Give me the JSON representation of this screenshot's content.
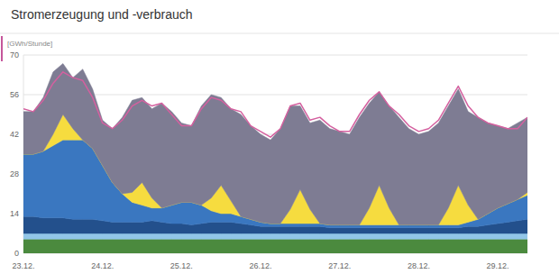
{
  "chart_data": {
    "type": "area",
    "title": "Stromerzeugung und -verbrauch",
    "y_label": "[GWh/Stunde]",
    "stacked": true,
    "grid": true,
    "ylim": [
      0,
      70
    ],
    "yticks": [
      0,
      14,
      28,
      42,
      56,
      70
    ],
    "categories": [
      "23.12.",
      null,
      null,
      null,
      null,
      null,
      null,
      null,
      "24.12.",
      null,
      null,
      null,
      null,
      null,
      null,
      null,
      "25.12.",
      null,
      null,
      null,
      null,
      null,
      null,
      null,
      "26.12.",
      null,
      null,
      null,
      null,
      null,
      null,
      null,
      "27.12.",
      null,
      null,
      null,
      null,
      null,
      null,
      null,
      "28.12.",
      null,
      null,
      null,
      null,
      null,
      null,
      null,
      "29.12.",
      null,
      null,
      null
    ],
    "series": [
      {
        "color": "#4b8a3e",
        "values": [
          5,
          5,
          5,
          5,
          5,
          5,
          5,
          5,
          5,
          5,
          5,
          5,
          5,
          5,
          5,
          5,
          5,
          5,
          5,
          5,
          5,
          5,
          5,
          5,
          5,
          5,
          5,
          5,
          5,
          5,
          5,
          5,
          5,
          5,
          5,
          5,
          5,
          5,
          5,
          5,
          5,
          5,
          5,
          5,
          5,
          5,
          5,
          5,
          5,
          5,
          5,
          5
        ]
      },
      {
        "color": "#92c6e8",
        "values": [
          2,
          2,
          2,
          2,
          2,
          2,
          2,
          2,
          2,
          2,
          2,
          2,
          2,
          2,
          2,
          2,
          2,
          2,
          2,
          2,
          2,
          2,
          2,
          2,
          2,
          2,
          2,
          2,
          2,
          2,
          2,
          2,
          2,
          2,
          2,
          2,
          2,
          2,
          2,
          2,
          2,
          2,
          2,
          2,
          2,
          2,
          2,
          2,
          2,
          2,
          2,
          2
        ]
      },
      {
        "color": "#23508c",
        "values": [
          6,
          6,
          5.5,
          5.5,
          5.5,
          5,
          5,
          5,
          4.5,
          4,
          4,
          4,
          4,
          4.5,
          4,
          3.5,
          3.5,
          3,
          3.5,
          4,
          4,
          4,
          3.5,
          3,
          2.5,
          2.5,
          2.5,
          2.5,
          2.5,
          2.5,
          2.5,
          2,
          2,
          2,
          2,
          2,
          2,
          2,
          2,
          2,
          2,
          2,
          2,
          2,
          2,
          2.5,
          2.5,
          3,
          3.5,
          4,
          4.5,
          5
        ]
      },
      {
        "color": "#3a77c0",
        "values": [
          22,
          22,
          23.5,
          25.5,
          27.5,
          28,
          28,
          25,
          19.5,
          14,
          10,
          7,
          6,
          4.5,
          5,
          6.5,
          7.5,
          8,
          6.5,
          4,
          3,
          3,
          2.5,
          2,
          1.5,
          1,
          1,
          1,
          1,
          1,
          1,
          1,
          1,
          1,
          1,
          1,
          1,
          1,
          1,
          1,
          1,
          1,
          1,
          1,
          1,
          1.5,
          2.5,
          4,
          5.5,
          6.5,
          7.5,
          8.5
        ]
      },
      {
        "color": "#f6dc3f",
        "values": [
          0,
          0,
          0,
          4,
          9,
          4,
          0,
          0,
          0,
          0,
          0,
          3.5,
          8,
          3.5,
          0,
          0,
          0,
          0,
          0,
          4.5,
          10,
          4.5,
          0,
          0,
          0,
          0,
          0,
          5,
          12,
          5,
          0,
          0,
          0,
          0,
          0,
          6,
          14,
          6,
          0,
          0,
          0,
          0,
          0,
          6,
          14,
          6,
          0,
          0,
          0,
          0,
          0,
          1
        ]
      },
      {
        "color": "#7e7c93",
        "values": [
          15,
          15,
          19,
          22,
          18,
          18,
          25,
          21,
          16,
          19,
          27,
          32.5,
          30,
          31.5,
          37,
          33,
          28,
          27,
          35,
          36.5,
          31,
          32.5,
          36,
          33,
          31,
          29.5,
          33.5,
          36.5,
          29.5,
          30.5,
          36.5,
          34,
          33,
          32,
          38,
          37,
          33,
          36,
          38,
          34,
          32,
          33,
          36,
          36,
          34,
          33,
          36,
          32,
          29,
          26.5,
          27,
          26.5
        ]
      },
      {
        "color": "#d4609f",
        "type": "line",
        "values": [
          51,
          50,
          54,
          60,
          64,
          62,
          61,
          55,
          46,
          44,
          47,
          52,
          54,
          52,
          53,
          49,
          45,
          45,
          51,
          55,
          54,
          51,
          50,
          45,
          43,
          41,
          44,
          52,
          53,
          47,
          48,
          45,
          43,
          43,
          49,
          54,
          57,
          52,
          49,
          45,
          43,
          44,
          47,
          53,
          59,
          52,
          48,
          46,
          45,
          44,
          44,
          48
        ]
      }
    ]
  }
}
